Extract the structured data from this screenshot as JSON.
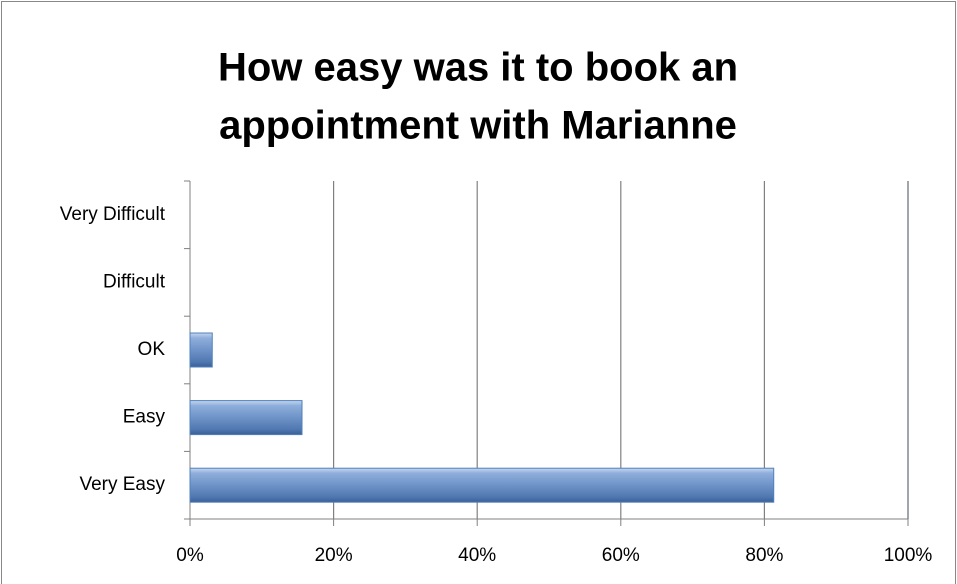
{
  "chart_data": {
    "type": "hbar",
    "title": [
      "How easy was it to book an",
      "appointment with Marianne"
    ],
    "categories": [
      "Very Easy",
      "Easy",
      "OK",
      "Difficult",
      "Very Difficult"
    ],
    "values": [
      81.3,
      15.6,
      3.1,
      0,
      0
    ],
    "color": "#4f81bd",
    "xlim": [
      0,
      100
    ],
    "xticks": [
      {
        "value": 0,
        "label": "0%"
      },
      {
        "value": 20,
        "label": "20%"
      },
      {
        "value": 40,
        "label": "40%"
      },
      {
        "value": 60,
        "label": "60%"
      },
      {
        "value": 80,
        "label": "80%"
      },
      {
        "value": 100,
        "label": "100%"
      }
    ],
    "grid": true
  }
}
